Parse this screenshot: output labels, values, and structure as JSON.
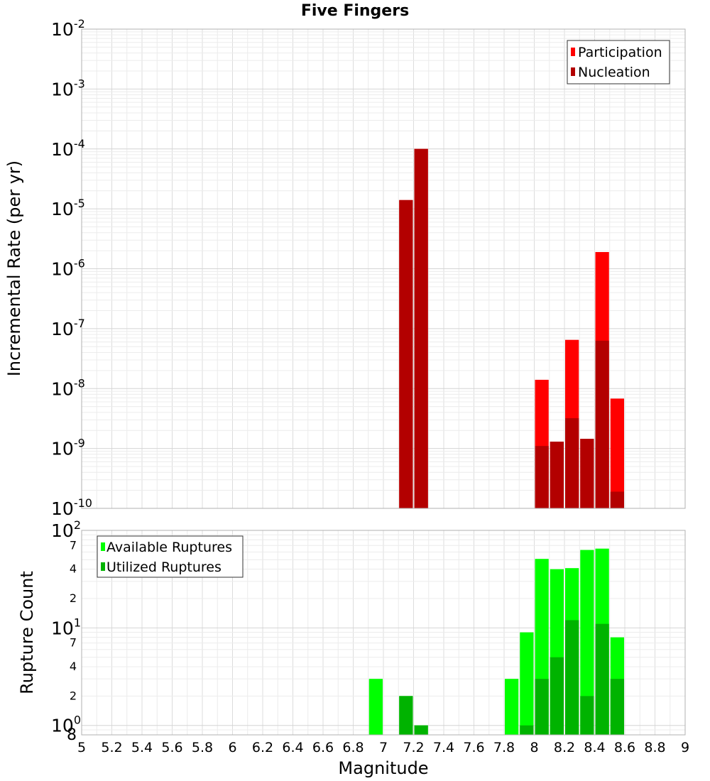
{
  "chart_data": [
    {
      "type": "bar",
      "title": "Five Fingers",
      "xlabel": "",
      "ylabel": "Incremental Rate (per yr)",
      "yscale": "log",
      "ylim": [
        1e-10,
        0.01
      ],
      "xlim": [
        5,
        9
      ],
      "bin_width": 0.1,
      "y_tick_labels": [
        {
          "base": "10",
          "exp": "-10"
        },
        {
          "base": "10",
          "exp": "-9"
        },
        {
          "base": "10",
          "exp": "-8"
        },
        {
          "base": "10",
          "exp": "-7"
        },
        {
          "base": "10",
          "exp": "-6"
        },
        {
          "base": "10",
          "exp": "-5"
        },
        {
          "base": "10",
          "exp": "-4"
        },
        {
          "base": "10",
          "exp": "-3"
        },
        {
          "base": "10",
          "exp": "-2"
        }
      ],
      "legend": {
        "placement": "top-right"
      },
      "series": [
        {
          "name": "Participation",
          "color": "#ff0000",
          "x": [
            7.15,
            7.25,
            8.05,
            8.15,
            8.25,
            8.35,
            8.45,
            8.55
          ],
          "values": [
            1.4e-05,
            0.0001,
            1.4e-08,
            1.3e-09,
            6.5e-08,
            1.45e-09,
            1.9e-06,
            6.8e-09
          ]
        },
        {
          "name": "Nucleation",
          "color": "#b30000",
          "x": [
            7.15,
            7.25,
            8.05,
            8.15,
            8.25,
            8.35,
            8.45,
            8.55
          ],
          "values": [
            1.4e-05,
            0.0001,
            1.1e-09,
            1.3e-09,
            3.2e-09,
            1.45e-09,
            6.3e-08,
            1.9e-10
          ]
        }
      ]
    },
    {
      "type": "bar",
      "title": "",
      "xlabel": "Magnitude",
      "ylabel": "Rupture Count",
      "yscale": "log",
      "ylim": [
        0.8,
        100
      ],
      "xlim": [
        5,
        9
      ],
      "bin_width": 0.1,
      "x_ticks": [
        "5",
        "5.2",
        "5.4",
        "5.6",
        "5.8",
        "6",
        "6.2",
        "6.4",
        "6.6",
        "6.8",
        "7",
        "7.2",
        "7.4",
        "7.6",
        "7.8",
        "8",
        "8.2",
        "8.4",
        "8.6",
        "8.8",
        "9"
      ],
      "y_tick_labels": [
        {
          "label": "8",
          "exp": "",
          "value": 0.8
        },
        {
          "label": "10",
          "exp": "0",
          "value": 1
        },
        {
          "label": "2",
          "exp": "",
          "value": 2
        },
        {
          "label": "4",
          "exp": "",
          "value": 4
        },
        {
          "label": "7",
          "exp": "",
          "value": 7
        },
        {
          "label": "10",
          "exp": "1",
          "value": 10
        },
        {
          "label": "2",
          "exp": "",
          "value": 20
        },
        {
          "label": "4",
          "exp": "",
          "value": 40
        },
        {
          "label": "7",
          "exp": "",
          "value": 70
        },
        {
          "label": "10",
          "exp": "2",
          "value": 100
        }
      ],
      "legend": {
        "placement": "top-left"
      },
      "series": [
        {
          "name": "Available Ruptures",
          "color": "#00ff00",
          "x": [
            6.95,
            7.15,
            7.25,
            7.85,
            7.95,
            8.05,
            8.15,
            8.25,
            8.35,
            8.45,
            8.55
          ],
          "values": [
            3,
            2,
            1,
            3,
            9,
            51,
            40,
            41,
            63,
            65,
            8
          ]
        },
        {
          "name": "Utilized Ruptures",
          "color": "#00b300",
          "x": [
            7.15,
            7.25,
            7.95,
            8.05,
            8.15,
            8.25,
            8.35,
            8.45,
            8.55
          ],
          "values": [
            2,
            1,
            1,
            3,
            5,
            12,
            2,
            11,
            3
          ]
        }
      ]
    }
  ]
}
